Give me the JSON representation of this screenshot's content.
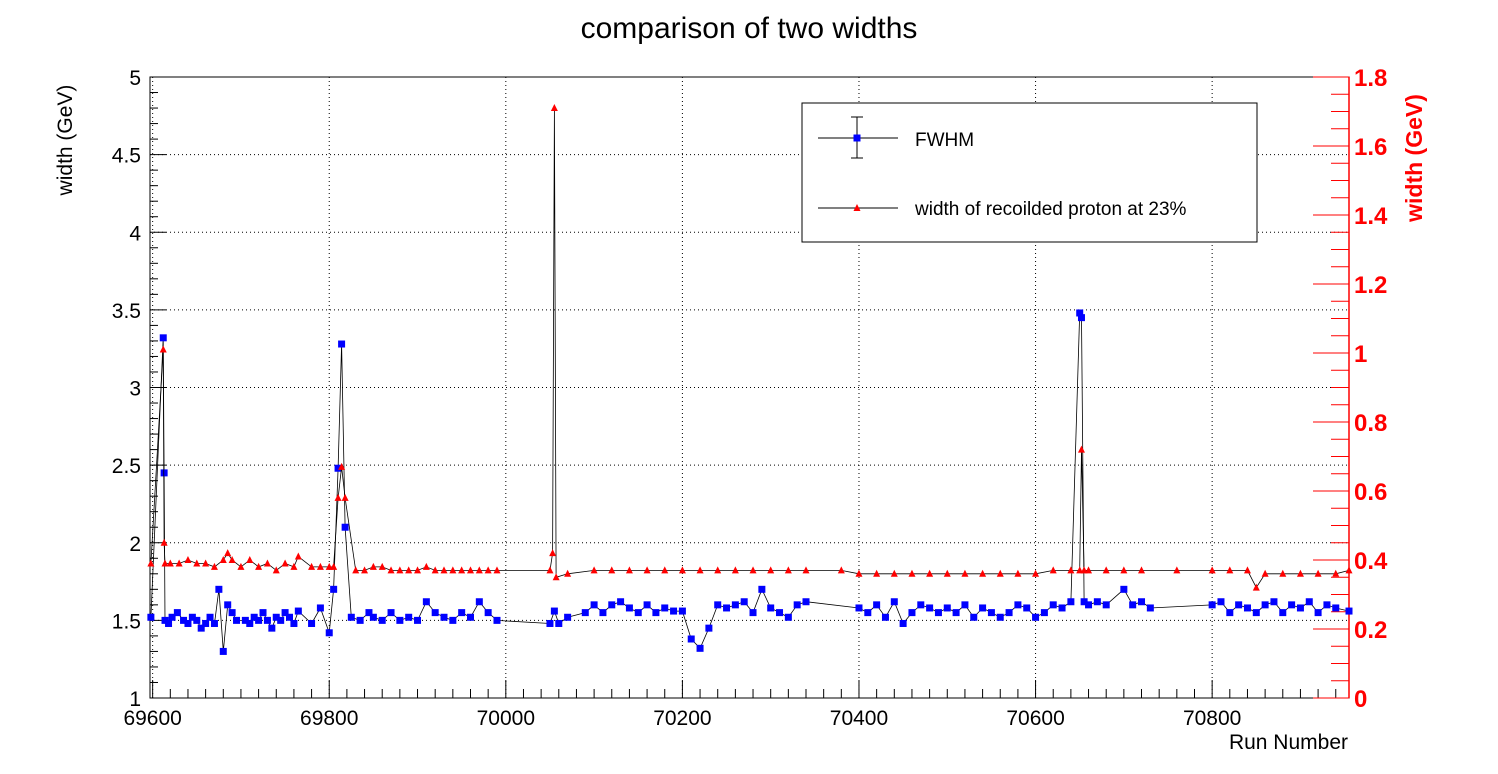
{
  "chart_data": {
    "type": "scatter",
    "title": "comparison of two widths",
    "xlabel": "Run Number",
    "ylabel_left": "width (GeV)",
    "ylabel_right": "width (GeV)",
    "xlim": [
      69597,
      70955
    ],
    "ylim_left": [
      1,
      5
    ],
    "ylim_right": [
      0,
      1.8
    ],
    "grid": true,
    "legend_position": "top-right",
    "colors": {
      "fwhm": "#0000ff",
      "proton": "#ff0000",
      "line": "#000000",
      "right_axis": "#ff0000"
    },
    "x_ticks": [
      "69600",
      "69800",
      "70000",
      "70200",
      "70400",
      "70600",
      "70800"
    ],
    "y_ticks_left": [
      "1",
      "1.5",
      "2",
      "2.5",
      "3",
      "3.5",
      "4",
      "4.5",
      "5"
    ],
    "y_ticks_right": [
      "0",
      "0.2",
      "0.4",
      "0.6",
      "0.8",
      "1",
      "1.2",
      "1.4",
      "1.6",
      "1.8"
    ],
    "series": [
      {
        "name": "FWHM",
        "axis": "left",
        "marker": "square",
        "x": [
          69598,
          69612,
          69613,
          69614,
          69618,
          69622,
          69628,
          69635,
          69640,
          69645,
          69650,
          69655,
          69660,
          69665,
          69670,
          69675,
          69680,
          69685,
          69690,
          69695,
          69705,
          69710,
          69715,
          69720,
          69725,
          69730,
          69735,
          69740,
          69745,
          69750,
          69755,
          69760,
          69765,
          69780,
          69790,
          69800,
          69805,
          69810,
          69814,
          69818,
          69825,
          69835,
          69845,
          69850,
          69860,
          69870,
          69880,
          69890,
          69900,
          69910,
          69920,
          69930,
          69940,
          69950,
          69960,
          69970,
          69980,
          69990,
          70050,
          70055,
          70060,
          70070,
          70090,
          70100,
          70110,
          70120,
          70130,
          70140,
          70150,
          70160,
          70170,
          70180,
          70190,
          70200,
          70210,
          70220,
          70230,
          70240,
          70250,
          70260,
          70270,
          70280,
          70290,
          70300,
          70310,
          70320,
          70330,
          70340,
          70400,
          70410,
          70420,
          70430,
          70440,
          70450,
          70460,
          70470,
          70480,
          70490,
          70500,
          70510,
          70520,
          70530,
          70540,
          70550,
          70560,
          70570,
          70580,
          70590,
          70600,
          70610,
          70620,
          70630,
          70640,
          70650,
          70652,
          70655,
          70660,
          70670,
          70680,
          70700,
          70710,
          70720,
          70730,
          70800,
          70810,
          70820,
          70830,
          70840,
          70850,
          70860,
          70870,
          70880,
          70890,
          70900,
          70910,
          70920,
          70930,
          70940,
          70955
        ],
        "y": [
          1.52,
          3.32,
          2.45,
          1.5,
          1.48,
          1.52,
          1.55,
          1.5,
          1.48,
          1.52,
          1.5,
          1.45,
          1.48,
          1.52,
          1.48,
          1.7,
          1.3,
          1.6,
          1.55,
          1.5,
          1.5,
          1.48,
          1.52,
          1.5,
          1.55,
          1.5,
          1.45,
          1.52,
          1.5,
          1.55,
          1.52,
          1.48,
          1.56,
          1.48,
          1.58,
          1.42,
          1.7,
          2.48,
          3.28,
          2.1,
          1.52,
          1.5,
          1.55,
          1.52,
          1.5,
          1.55,
          1.5,
          1.52,
          1.5,
          1.62,
          1.55,
          1.52,
          1.5,
          1.55,
          1.52,
          1.62,
          1.55,
          1.5,
          1.48,
          1.56,
          1.48,
          1.52,
          1.55,
          1.6,
          1.55,
          1.6,
          1.62,
          1.58,
          1.55,
          1.6,
          1.55,
          1.58,
          1.56,
          1.56,
          1.38,
          1.32,
          1.45,
          1.6,
          1.58,
          1.6,
          1.62,
          1.55,
          1.7,
          1.58,
          1.55,
          1.52,
          1.6,
          1.62,
          1.58,
          1.55,
          1.6,
          1.52,
          1.62,
          1.48,
          1.55,
          1.6,
          1.58,
          1.55,
          1.58,
          1.55,
          1.6,
          1.52,
          1.58,
          1.55,
          1.52,
          1.55,
          1.6,
          1.58,
          1.52,
          1.55,
          1.6,
          1.58,
          1.62,
          3.48,
          3.45,
          1.62,
          1.6,
          1.62,
          1.6,
          1.7,
          1.6,
          1.62,
          1.58,
          1.6,
          1.62,
          1.55,
          1.6,
          1.58,
          1.55,
          1.6,
          1.62,
          1.55,
          1.6,
          1.58,
          1.62,
          1.55,
          1.6,
          1.58,
          1.56
        ]
      },
      {
        "name": "width of recoilded proton at 23%",
        "axis": "right",
        "marker": "triangle",
        "x": [
          69598,
          69612,
          69613,
          69614,
          69620,
          69630,
          69640,
          69650,
          69660,
          69670,
          69680,
          69685,
          69690,
          69700,
          69710,
          69720,
          69730,
          69740,
          69750,
          69760,
          69765,
          69780,
          69790,
          69800,
          69805,
          69810,
          69814,
          69818,
          69830,
          69840,
          69850,
          69860,
          69870,
          69880,
          69890,
          69900,
          69910,
          69920,
          69930,
          69940,
          69950,
          69960,
          69970,
          69980,
          69990,
          70050,
          70053,
          70055,
          70057,
          70070,
          70100,
          70120,
          70140,
          70160,
          70180,
          70200,
          70220,
          70240,
          70260,
          70280,
          70300,
          70320,
          70340,
          70380,
          70400,
          70420,
          70440,
          70460,
          70480,
          70500,
          70520,
          70540,
          70560,
          70580,
          70600,
          70620,
          70640,
          70650,
          70652,
          70655,
          70660,
          70680,
          70700,
          70720,
          70760,
          70800,
          70820,
          70840,
          70850,
          70860,
          70880,
          70900,
          70920,
          70940,
          70955
        ],
        "y": [
          0.39,
          1.01,
          0.45,
          0.39,
          0.39,
          0.39,
          0.4,
          0.39,
          0.39,
          0.38,
          0.4,
          0.42,
          0.4,
          0.38,
          0.4,
          0.38,
          0.39,
          0.37,
          0.39,
          0.38,
          0.41,
          0.38,
          0.38,
          0.38,
          0.38,
          0.58,
          0.67,
          0.58,
          0.37,
          0.37,
          0.38,
          0.38,
          0.37,
          0.37,
          0.37,
          0.37,
          0.38,
          0.37,
          0.37,
          0.37,
          0.37,
          0.37,
          0.37,
          0.37,
          0.37,
          0.37,
          0.42,
          1.71,
          0.35,
          0.36,
          0.37,
          0.37,
          0.37,
          0.37,
          0.37,
          0.37,
          0.37,
          0.37,
          0.37,
          0.37,
          0.37,
          0.37,
          0.37,
          0.37,
          0.36,
          0.36,
          0.36,
          0.36,
          0.36,
          0.36,
          0.36,
          0.36,
          0.36,
          0.36,
          0.36,
          0.37,
          0.37,
          0.37,
          0.72,
          0.37,
          0.37,
          0.37,
          0.37,
          0.37,
          0.37,
          0.37,
          0.37,
          0.37,
          0.32,
          0.36,
          0.36,
          0.36,
          0.36,
          0.36,
          0.37
        ]
      }
    ]
  }
}
